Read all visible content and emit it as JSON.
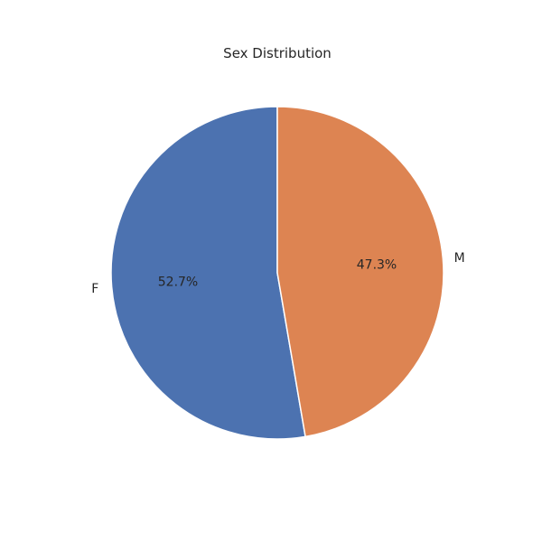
{
  "chart_data": {
    "type": "pie",
    "title": "Sex Distribution",
    "categories": [
      "F",
      "M"
    ],
    "values": [
      52.7,
      47.3
    ],
    "value_labels": [
      "52.7%",
      "47.3%"
    ],
    "colors": [
      "#4C72B0",
      "#DD8452"
    ],
    "start_angle_deg": 90,
    "direction": "counterclockwise",
    "edge_color": "#ffffff"
  }
}
